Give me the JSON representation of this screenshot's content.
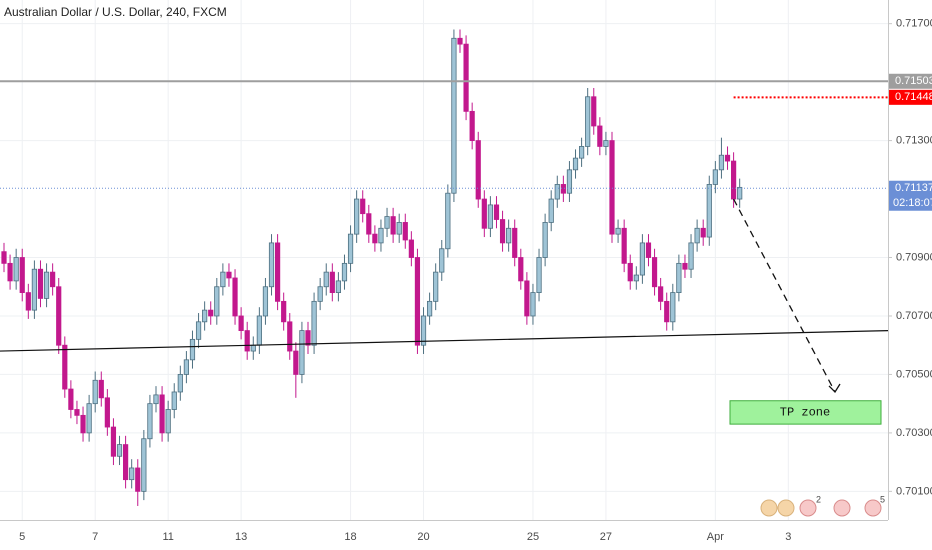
{
  "chart_data": {
    "type": "candlestick",
    "title": "Australian Dollar / U.S. Dollar, 240, FXCM",
    "categories": [
      null,
      null,
      null,
      "5",
      null,
      null,
      null,
      null,
      null,
      null,
      null,
      null,
      null,
      null,
      null,
      "7",
      null,
      null,
      null,
      null,
      null,
      null,
      null,
      null,
      null,
      null,
      null,
      "11",
      null,
      null,
      null,
      null,
      null,
      null,
      null,
      null,
      null,
      null,
      null,
      "13",
      null,
      null,
      null,
      null,
      null,
      null,
      null,
      null,
      null,
      null,
      null,
      null,
      null,
      null,
      null,
      null,
      null,
      "18",
      null,
      null,
      null,
      null,
      null,
      null,
      null,
      null,
      null,
      null,
      null,
      "20",
      null,
      null,
      null,
      null,
      null,
      null,
      null,
      null,
      null,
      null,
      null,
      null,
      null,
      null,
      null,
      null,
      null,
      "25",
      null,
      null,
      null,
      null,
      null,
      null,
      null,
      null,
      null,
      null,
      null,
      "27",
      null,
      null,
      null,
      null,
      null,
      null,
      null,
      null,
      null,
      null,
      null,
      null,
      null,
      null,
      null,
      null,
      null,
      "Apr",
      null,
      null,
      null,
      null,
      null,
      null,
      null,
      null,
      null,
      null,
      null,
      "3"
    ],
    "ohlc": [
      [
        0.7092,
        0.7095,
        0.7085,
        0.7088
      ],
      [
        0.7088,
        0.7091,
        0.7079,
        0.7082
      ],
      [
        0.7082,
        0.7093,
        0.7079,
        0.709
      ],
      [
        0.709,
        0.7093,
        0.7075,
        0.7078
      ],
      [
        0.7078,
        0.7081,
        0.7069,
        0.7072
      ],
      [
        0.7072,
        0.7089,
        0.7069,
        0.7086
      ],
      [
        0.7086,
        0.7089,
        0.7073,
        0.7076
      ],
      [
        0.7076,
        0.7088,
        0.7073,
        0.7085
      ],
      [
        0.7085,
        0.7088,
        0.7077,
        0.708
      ],
      [
        0.708,
        0.7083,
        0.7057,
        0.706
      ],
      [
        0.706,
        0.7063,
        0.7042,
        0.7045
      ],
      [
        0.7045,
        0.7048,
        0.7035,
        0.7038
      ],
      [
        0.7038,
        0.7041,
        0.7033,
        0.7036
      ],
      [
        0.7036,
        0.7039,
        0.7027,
        0.703
      ],
      [
        0.703,
        0.7043,
        0.7027,
        0.704
      ],
      [
        0.704,
        0.7051,
        0.7037,
        0.7048
      ],
      [
        0.7048,
        0.7051,
        0.7039,
        0.7042
      ],
      [
        0.7042,
        0.7045,
        0.7029,
        0.7032
      ],
      [
        0.7032,
        0.7035,
        0.7019,
        0.7022
      ],
      [
        0.7022,
        0.7029,
        0.7019,
        0.7026
      ],
      [
        0.7026,
        0.7029,
        0.7011,
        0.7014
      ],
      [
        0.7014,
        0.7021,
        0.7011,
        0.7018
      ],
      [
        0.7018,
        0.7021,
        0.7005,
        0.701
      ],
      [
        0.701,
        0.7031,
        0.7007,
        0.7028
      ],
      [
        0.7028,
        0.7043,
        0.7025,
        0.704
      ],
      [
        0.704,
        0.7046,
        0.7037,
        0.7043
      ],
      [
        0.7043,
        0.7046,
        0.7027,
        0.703
      ],
      [
        0.703,
        0.7041,
        0.7027,
        0.7038
      ],
      [
        0.7038,
        0.7047,
        0.7035,
        0.7044
      ],
      [
        0.7044,
        0.7053,
        0.7041,
        0.705
      ],
      [
        0.705,
        0.7058,
        0.7047,
        0.7055
      ],
      [
        0.7055,
        0.7065,
        0.7052,
        0.7062
      ],
      [
        0.7062,
        0.7071,
        0.7059,
        0.7068
      ],
      [
        0.7068,
        0.7075,
        0.7065,
        0.7072
      ],
      [
        0.7072,
        0.7075,
        0.7067,
        0.707
      ],
      [
        0.707,
        0.7083,
        0.7067,
        0.708
      ],
      [
        0.708,
        0.7088,
        0.7077,
        0.7085
      ],
      [
        0.7085,
        0.7088,
        0.708,
        0.7083
      ],
      [
        0.7083,
        0.7086,
        0.7067,
        0.707
      ],
      [
        0.707,
        0.7073,
        0.7062,
        0.7065
      ],
      [
        0.7065,
        0.7068,
        0.7055,
        0.7058
      ],
      [
        0.7058,
        0.7063,
        0.7055,
        0.706
      ],
      [
        0.706,
        0.7073,
        0.7057,
        0.707
      ],
      [
        0.707,
        0.7083,
        0.7067,
        0.708
      ],
      [
        0.708,
        0.7098,
        0.7077,
        0.7095
      ],
      [
        0.7095,
        0.7098,
        0.7072,
        0.7075
      ],
      [
        0.7075,
        0.7078,
        0.7065,
        0.7068
      ],
      [
        0.7068,
        0.7071,
        0.7055,
        0.7058
      ],
      [
        0.7058,
        0.7061,
        0.7042,
        0.705
      ],
      [
        0.705,
        0.7068,
        0.7047,
        0.7065
      ],
      [
        0.7065,
        0.7068,
        0.7057,
        0.706
      ],
      [
        0.706,
        0.7078,
        0.7057,
        0.7075
      ],
      [
        0.7075,
        0.7083,
        0.7072,
        0.708
      ],
      [
        0.708,
        0.7088,
        0.7077,
        0.7085
      ],
      [
        0.7085,
        0.7088,
        0.7075,
        0.7078
      ],
      [
        0.7078,
        0.7085,
        0.7075,
        0.7082
      ],
      [
        0.7082,
        0.7091,
        0.7079,
        0.7088
      ],
      [
        0.7088,
        0.7101,
        0.7085,
        0.7098
      ],
      [
        0.7098,
        0.7113,
        0.7095,
        0.711
      ],
      [
        0.711,
        0.7113,
        0.7102,
        0.7105
      ],
      [
        0.7105,
        0.7108,
        0.7095,
        0.7098
      ],
      [
        0.7098,
        0.7101,
        0.7092,
        0.7095
      ],
      [
        0.7095,
        0.7103,
        0.7092,
        0.71
      ],
      [
        0.71,
        0.7107,
        0.7097,
        0.7104
      ],
      [
        0.7104,
        0.7107,
        0.7095,
        0.7098
      ],
      [
        0.7098,
        0.7105,
        0.7095,
        0.7102
      ],
      [
        0.7102,
        0.7105,
        0.7093,
        0.7096
      ],
      [
        0.7096,
        0.7099,
        0.7087,
        0.709
      ],
      [
        0.709,
        0.7093,
        0.7057,
        0.706
      ],
      [
        0.706,
        0.7073,
        0.7057,
        0.707
      ],
      [
        0.707,
        0.7078,
        0.7067,
        0.7075
      ],
      [
        0.7075,
        0.7088,
        0.7072,
        0.7085
      ],
      [
        0.7085,
        0.7096,
        0.7082,
        0.7093
      ],
      [
        0.7093,
        0.7115,
        0.709,
        0.7112
      ],
      [
        0.7112,
        0.7168,
        0.7109,
        0.7165
      ],
      [
        0.7165,
        0.7168,
        0.716,
        0.7163
      ],
      [
        0.7163,
        0.7166,
        0.7137,
        0.714
      ],
      [
        0.714,
        0.7143,
        0.7127,
        0.713
      ],
      [
        0.713,
        0.7133,
        0.7107,
        0.711
      ],
      [
        0.711,
        0.7113,
        0.7097,
        0.71
      ],
      [
        0.71,
        0.7111,
        0.7097,
        0.7108
      ],
      [
        0.7108,
        0.7111,
        0.71,
        0.7103
      ],
      [
        0.7103,
        0.7106,
        0.7092,
        0.7095
      ],
      [
        0.7095,
        0.7103,
        0.7092,
        0.71
      ],
      [
        0.71,
        0.7103,
        0.7087,
        0.709
      ],
      [
        0.709,
        0.7093,
        0.7079,
        0.7082
      ],
      [
        0.7082,
        0.7085,
        0.7067,
        0.707
      ],
      [
        0.707,
        0.7081,
        0.7067,
        0.7078
      ],
      [
        0.7078,
        0.7093,
        0.7075,
        0.709
      ],
      [
        0.709,
        0.7105,
        0.7087,
        0.7102
      ],
      [
        0.7102,
        0.7113,
        0.7099,
        0.711
      ],
      [
        0.711,
        0.7118,
        0.7107,
        0.7115
      ],
      [
        0.7115,
        0.7118,
        0.7109,
        0.7112
      ],
      [
        0.7112,
        0.7123,
        0.7109,
        0.712
      ],
      [
        0.712,
        0.7127,
        0.7117,
        0.7124
      ],
      [
        0.7124,
        0.7131,
        0.7121,
        0.7128
      ],
      [
        0.7128,
        0.7148,
        0.7125,
        0.7145
      ],
      [
        0.7145,
        0.7148,
        0.7132,
        0.7135
      ],
      [
        0.7135,
        0.7138,
        0.7125,
        0.7128
      ],
      [
        0.7128,
        0.7133,
        0.7125,
        0.713
      ],
      [
        0.713,
        0.7133,
        0.7095,
        0.7098
      ],
      [
        0.7098,
        0.7103,
        0.7095,
        0.71
      ],
      [
        0.71,
        0.7103,
        0.7085,
        0.7088
      ],
      [
        0.7088,
        0.7091,
        0.7079,
        0.7082
      ],
      [
        0.7082,
        0.7087,
        0.7079,
        0.7084
      ],
      [
        0.7084,
        0.7098,
        0.7081,
        0.7095
      ],
      [
        0.7095,
        0.7098,
        0.7087,
        0.709
      ],
      [
        0.709,
        0.7093,
        0.7077,
        0.708
      ],
      [
        0.708,
        0.7083,
        0.7072,
        0.7075
      ],
      [
        0.7075,
        0.7078,
        0.7065,
        0.7068
      ],
      [
        0.7068,
        0.7081,
        0.7065,
        0.7078
      ],
      [
        0.7078,
        0.7091,
        0.7075,
        0.7088
      ],
      [
        0.7088,
        0.7091,
        0.7083,
        0.7086
      ],
      [
        0.7086,
        0.7098,
        0.7083,
        0.7095
      ],
      [
        0.7095,
        0.7103,
        0.7092,
        0.71
      ],
      [
        0.71,
        0.7103,
        0.7094,
        0.7097
      ],
      [
        0.7097,
        0.7118,
        0.7094,
        0.7115
      ],
      [
        0.7115,
        0.7123,
        0.7112,
        0.712
      ],
      [
        0.712,
        0.7131,
        0.7117,
        0.7125
      ],
      [
        0.7125,
        0.7128,
        0.712,
        0.7123
      ],
      [
        0.7123,
        0.7126,
        0.7107,
        0.711
      ],
      [
        0.711,
        0.7117,
        0.7107,
        0.7114
      ],
      null,
      null,
      null,
      null,
      null,
      null,
      null,
      null
    ],
    "up_color": "#9fc4d6",
    "down_color": "#c2188d",
    "ylim": [
      0.70002,
      0.71781
    ],
    "yticks": [
      {
        "value": 0.717,
        "label": "0.71700"
      },
      {
        "value": 0.713,
        "label": "0.71300"
      },
      {
        "value": 0.709,
        "label": "0.70900"
      },
      {
        "value": 0.707,
        "label": "0.70700"
      },
      {
        "value": 0.705,
        "label": "0.70500"
      },
      {
        "value": 0.703,
        "label": "0.70300"
      },
      {
        "value": 0.701,
        "label": "0.70100"
      }
    ],
    "grid": true,
    "levels": [
      {
        "value": 0.71503,
        "color": "#9e9e9e",
        "style": "solid"
      },
      {
        "value": 0.71448,
        "color": "#ff0000",
        "style": "dotted"
      },
      {
        "value": 0.71137,
        "color": "#6b8fd6",
        "style": "dotted",
        "countdown": "02:18:07"
      }
    ],
    "trendline": [
      0.7058,
      0.7065
    ],
    "arrow": [
      0.711,
      0.7044
    ],
    "tp_zone": {
      "label": "TP zone",
      "top": 0.7041,
      "bottom": 0.7033
    },
    "event_counts": [
      "2",
      "5"
    ]
  }
}
